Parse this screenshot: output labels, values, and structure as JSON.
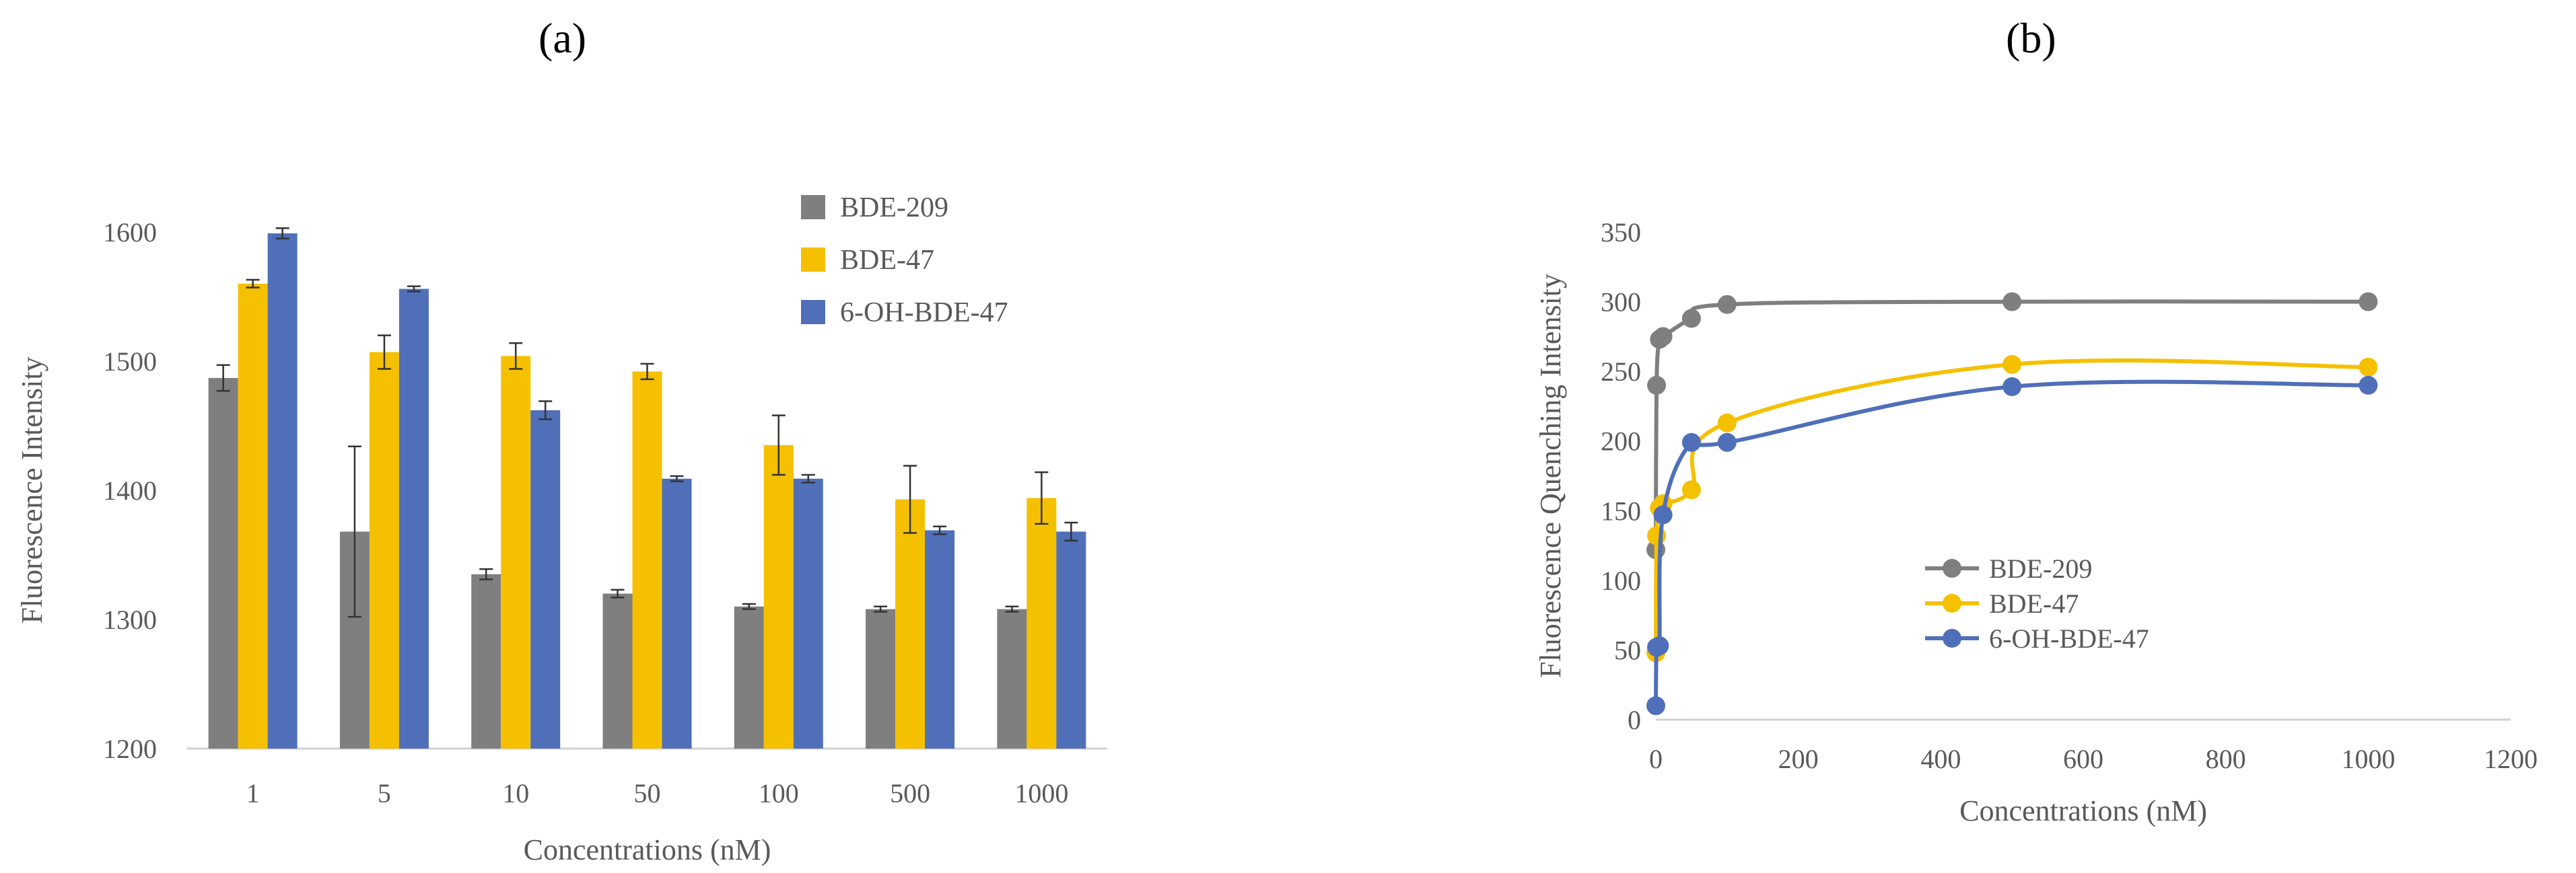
{
  "panel_labels": {
    "a": "(a)",
    "b": "(b)"
  },
  "chart_data": [
    {
      "type": "bar",
      "panel": "(a)",
      "xlabel": "Concentrations (nM)",
      "ylabel": "Fluorescence Intensity",
      "ylim": [
        1200,
        1600
      ],
      "yticks": [
        "1200",
        "1300",
        "1400",
        "1500",
        "1600"
      ],
      "grid": false,
      "legend_position": "top-right",
      "categories": [
        "1",
        "5",
        "10",
        "50",
        "100",
        "500",
        "1000"
      ],
      "series": [
        {
          "name": "BDE-209",
          "color": "#7f7f7f",
          "values": [
            1487,
            1368,
            1335,
            1320,
            1310,
            1308,
            1308
          ],
          "errors": [
            10,
            66,
            4,
            3,
            2,
            2,
            2
          ]
        },
        {
          "name": "BDE-47",
          "color": "#f5c000",
          "values": [
            1560,
            1507,
            1504,
            1492,
            1435,
            1393,
            1394
          ],
          "errors": [
            3,
            13,
            10,
            6,
            23,
            26,
            20
          ]
        },
        {
          "name": "6-OH-BDE-47",
          "color": "#4f6fb9",
          "values": [
            1599,
            1556,
            1462,
            1409,
            1409,
            1369,
            1368
          ],
          "errors": [
            4,
            2,
            7,
            2,
            3,
            3,
            7
          ]
        }
      ]
    },
    {
      "type": "line",
      "panel": "(b)",
      "xlabel": "Concentrations (nM)",
      "ylabel": "Fluorescence Quenching Intensity",
      "xlim": [
        0,
        1200
      ],
      "ylim": [
        0,
        350
      ],
      "xticks": [
        "0",
        "200",
        "400",
        "600",
        "800",
        "1000",
        "1200"
      ],
      "yticks": [
        "0",
        "50",
        "100",
        "150",
        "200",
        "250",
        "300",
        "350"
      ],
      "grid": false,
      "legend_position": "center",
      "x": [
        0,
        1,
        5,
        10,
        50,
        100,
        500,
        1000
      ],
      "series": [
        {
          "name": "BDE-209",
          "color": "#7f7f7f",
          "values": [
            122,
            240,
            273,
            275,
            288,
            298,
            300,
            300
          ]
        },
        {
          "name": "BDE-47",
          "color": "#f5c000",
          "values": [
            48,
            132,
            152,
            155,
            165,
            213,
            255,
            253
          ]
        },
        {
          "name": "6-OH-BDE-47",
          "color": "#4f6fb9",
          "values": [
            10,
            52,
            53,
            147,
            199,
            199,
            239,
            240
          ]
        }
      ]
    }
  ]
}
